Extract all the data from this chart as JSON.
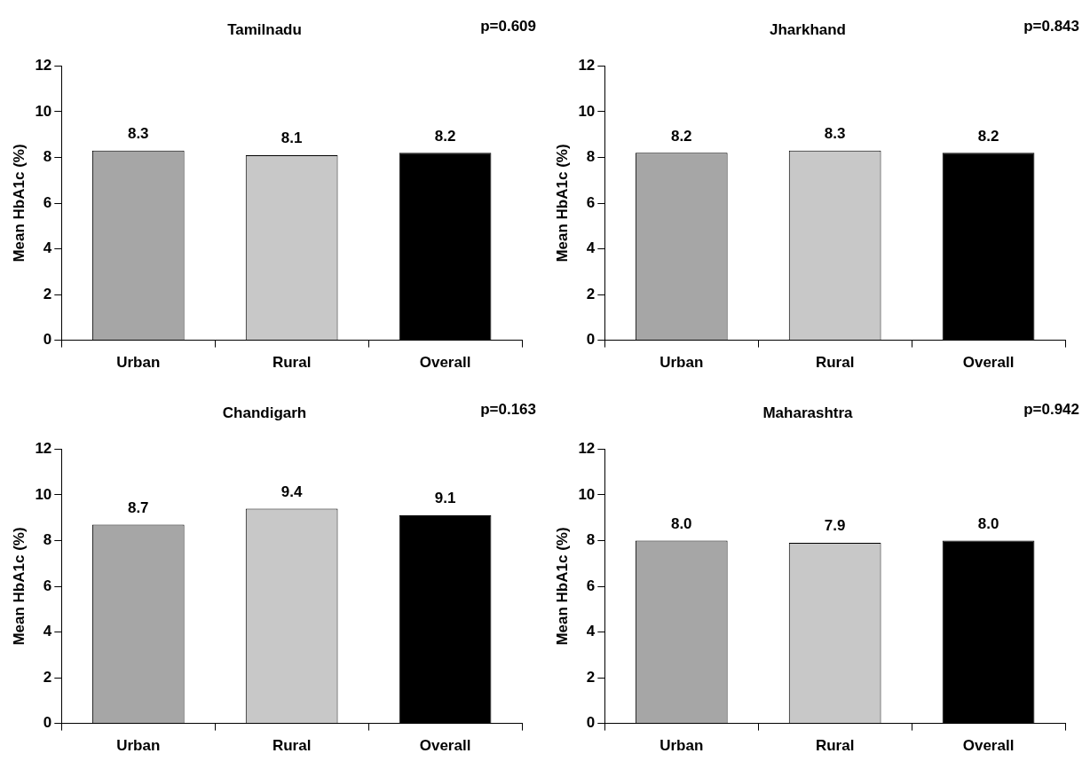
{
  "chart_data": [
    {
      "type": "bar",
      "title": "Tamilnadu",
      "ylabel": "Mean HbA1c (%)",
      "annotations": [
        "p=0.609"
      ],
      "categories": [
        "Urban",
        "Rural",
        "Overall"
      ],
      "values": [
        8.3,
        8.1,
        8.2
      ],
      "colors": [
        "#a6a6a6",
        "#c8c8c8",
        "#000000"
      ],
      "ylim": [
        0,
        12
      ],
      "yticks": [
        0,
        2,
        4,
        6,
        8,
        10,
        12
      ],
      "data_labels": true,
      "grid": false,
      "legend": false
    },
    {
      "type": "bar",
      "title": "Jharkhand",
      "ylabel": "Mean HbA1c (%)",
      "annotations": [
        "p=0.843"
      ],
      "categories": [
        "Urban",
        "Rural",
        "Overall"
      ],
      "values": [
        8.2,
        8.3,
        8.2
      ],
      "colors": [
        "#a6a6a6",
        "#c8c8c8",
        "#000000"
      ],
      "ylim": [
        0,
        12
      ],
      "yticks": [
        0,
        2,
        4,
        6,
        8,
        10,
        12
      ],
      "data_labels": true,
      "grid": false,
      "legend": false
    },
    {
      "type": "bar",
      "title": "Chandigarh",
      "ylabel": "Mean HbA1c (%)",
      "annotations": [
        "p=0.163"
      ],
      "categories": [
        "Urban",
        "Rural",
        "Overall"
      ],
      "values": [
        8.7,
        9.4,
        9.1
      ],
      "colors": [
        "#a6a6a6",
        "#c8c8c8",
        "#000000"
      ],
      "ylim": [
        0,
        12
      ],
      "yticks": [
        0,
        2,
        4,
        6,
        8,
        10,
        12
      ],
      "data_labels": true,
      "grid": false,
      "legend": false
    },
    {
      "type": "bar",
      "title": "Maharashtra",
      "ylabel": "Mean HbA1c (%)",
      "annotations": [
        "p=0.942"
      ],
      "categories": [
        "Urban",
        "Rural",
        "Overall"
      ],
      "values": [
        8.0,
        7.9,
        8.0
      ],
      "value_labels": [
        "8.0",
        "7.9",
        "8.0"
      ],
      "colors": [
        "#a6a6a6",
        "#c8c8c8",
        "#000000"
      ],
      "ylim": [
        0,
        12
      ],
      "yticks": [
        0,
        2,
        4,
        6,
        8,
        10,
        12
      ],
      "grid": false,
      "legend": false
    }
  ]
}
